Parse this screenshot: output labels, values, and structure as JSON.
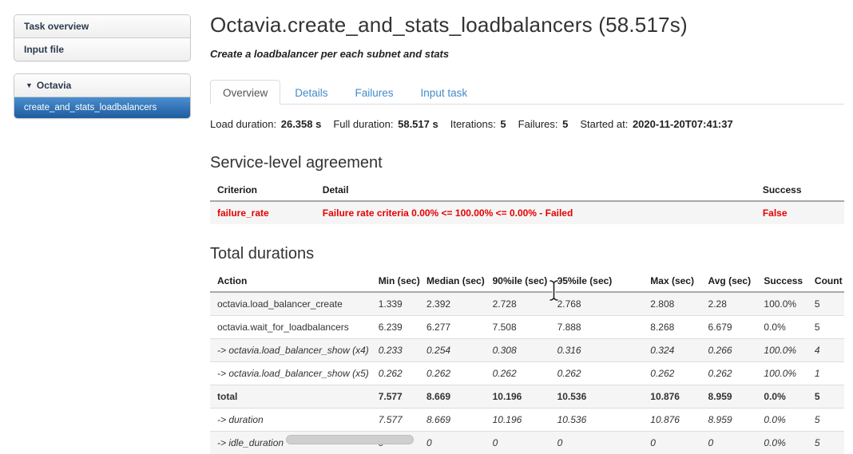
{
  "colors": {
    "link_blue": "#428bca",
    "error_red": "#e60000",
    "selected_item_top": "#4a8fd0",
    "selected_item_bottom": "#1e5c9e"
  },
  "sidebar": {
    "main_items": [
      {
        "label": "Task overview"
      },
      {
        "label": "Input file"
      }
    ],
    "group": {
      "icon": "▼",
      "label": "Octavia",
      "items": [
        {
          "label": "create_and_stats_loadbalancers",
          "selected": true
        }
      ]
    }
  },
  "header": {
    "title": "Octavia.create_and_stats_loadbalancers (58.517s)",
    "subtitle": "Create a loadbalancer per each subnet and stats"
  },
  "tabs": [
    {
      "label": "Overview",
      "active": true
    },
    {
      "label": "Details",
      "active": false
    },
    {
      "label": "Failures",
      "active": false
    },
    {
      "label": "Input task",
      "active": false
    }
  ],
  "stats": [
    {
      "label": "Load duration:",
      "value": "26.358 s"
    },
    {
      "label": "Full duration:",
      "value": "58.517 s"
    },
    {
      "label": "Iterations:",
      "value": "5"
    },
    {
      "label": "Failures:",
      "value": "5"
    },
    {
      "label": "Started at:",
      "value": "2020-11-20T07:41:37"
    }
  ],
  "sla": {
    "heading": "Service-level agreement",
    "columns": [
      "Criterion",
      "Detail",
      "Success"
    ],
    "rows": [
      {
        "criterion": "failure_rate",
        "detail": "Failure rate criteria 0.00% <= 100.00% <= 0.00% - Failed",
        "success": "False",
        "status": "failed"
      }
    ]
  },
  "durations": {
    "heading": "Total durations",
    "columns": [
      "Action",
      "Min (sec)",
      "Median (sec)",
      "90%ile (sec)",
      "95%ile (sec)",
      "Max (sec)",
      "Avg (sec)",
      "Success",
      "Count"
    ],
    "rows": [
      {
        "action": "octavia.load_balancer_create",
        "values": [
          "1.339",
          "2.392",
          "2.728",
          "2.768",
          "2.808",
          "2.28",
          "100.0%",
          "5"
        ],
        "style": "normal"
      },
      {
        "action": "octavia.wait_for_loadbalancers",
        "values": [
          "6.239",
          "6.277",
          "7.508",
          "7.888",
          "8.268",
          "6.679",
          "0.0%",
          "5"
        ],
        "style": "normal"
      },
      {
        "action": "-> octavia.load_balancer_show (x4)",
        "values": [
          "0.233",
          "0.254",
          "0.308",
          "0.316",
          "0.324",
          "0.266",
          "100.0%",
          "4"
        ],
        "style": "italic"
      },
      {
        "action": "-> octavia.load_balancer_show (x5)",
        "values": [
          "0.262",
          "0.262",
          "0.262",
          "0.262",
          "0.262",
          "0.262",
          "100.0%",
          "1"
        ],
        "style": "italic"
      },
      {
        "action": "total",
        "values": [
          "7.577",
          "8.669",
          "10.196",
          "10.536",
          "10.876",
          "8.959",
          "0.0%",
          "5"
        ],
        "style": "bold"
      },
      {
        "action": "-> duration",
        "values": [
          "7.577",
          "8.669",
          "10.196",
          "10.536",
          "10.876",
          "8.959",
          "0.0%",
          "5"
        ],
        "style": "italic"
      },
      {
        "action": "-> idle_duration",
        "values": [
          "0",
          "0",
          "0",
          "0",
          "0",
          "0",
          "0.0%",
          "5"
        ],
        "style": "italic"
      }
    ]
  },
  "cursor": {
    "icon": "text-ibeam-cursor"
  }
}
